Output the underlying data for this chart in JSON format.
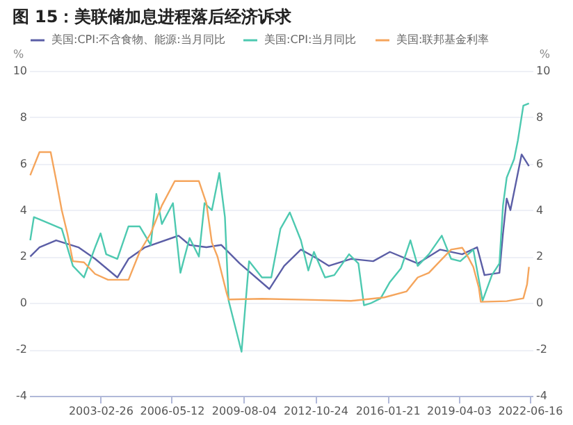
{
  "chart_data": {
    "type": "line",
    "title": "图 15：美联储加息进程落后经济诉求",
    "ylabel": "%",
    "y2label": "%",
    "xlim": [
      "1999-12-15",
      "2022-08-01"
    ],
    "ylim": [
      -4,
      10
    ],
    "yticks": [
      -4,
      -2,
      0,
      2,
      4,
      6,
      8,
      10
    ],
    "y2lim": [
      -4,
      10
    ],
    "y2ticks": [
      -4,
      -2,
      0,
      2,
      4,
      6,
      8,
      10
    ],
    "xticks": [
      "2003-02-26",
      "2006-05-12",
      "2009-08-04",
      "2012-10-24",
      "2016-01-21",
      "2019-04-03",
      "2022-06-16"
    ],
    "grid": "y",
    "legend": "top left",
    "line_style": "solid",
    "marker": "none",
    "series": [
      {
        "name": "美国:CPI:不含食物、能源:当月同比",
        "color": "#5b5ea6",
        "x": [
          "2000-01",
          "2000-06",
          "2001-03",
          "2002-03",
          "2002-12",
          "2003-12",
          "2004-06",
          "2005-03",
          "2006-09",
          "2007-03",
          "2007-12",
          "2008-08",
          "2009-06",
          "2010-10",
          "2011-06",
          "2012-03",
          "2012-12",
          "2013-06",
          "2014-06",
          "2015-06",
          "2016-03",
          "2017-06",
          "2018-06",
          "2019-06",
          "2020-02",
          "2020-06",
          "2021-02",
          "2021-04",
          "2021-06",
          "2021-08",
          "2022-02",
          "2022-06"
        ],
        "values": [
          2.0,
          2.4,
          2.7,
          2.4,
          1.9,
          1.1,
          1.9,
          2.4,
          2.9,
          2.5,
          2.4,
          2.5,
          1.7,
          0.6,
          1.6,
          2.3,
          1.9,
          1.6,
          1.9,
          1.8,
          2.2,
          1.7,
          2.3,
          2.1,
          2.4,
          1.2,
          1.3,
          3.0,
          4.5,
          4.0,
          6.4,
          5.9
        ]
      },
      {
        "name": "美国:CPI:当月同比",
        "color": "#4dc9b0",
        "x": [
          "2000-01",
          "2000-03",
          "2000-06",
          "2000-12",
          "2001-06",
          "2001-12",
          "2002-06",
          "2002-12",
          "2003-03",
          "2003-06",
          "2003-12",
          "2004-06",
          "2004-12",
          "2005-06",
          "2005-09",
          "2005-12",
          "2006-06",
          "2006-10",
          "2007-03",
          "2007-08",
          "2007-11",
          "2008-03",
          "2008-07",
          "2008-10",
          "2008-12",
          "2009-07",
          "2009-11",
          "2010-06",
          "2010-11",
          "2011-04",
          "2011-09",
          "2012-03",
          "2012-07",
          "2012-10",
          "2013-04",
          "2013-09",
          "2014-05",
          "2014-10",
          "2015-01",
          "2015-05",
          "2015-10",
          "2016-03",
          "2016-09",
          "2017-02",
          "2017-06",
          "2017-12",
          "2018-07",
          "2018-12",
          "2019-05",
          "2019-12",
          "2020-05",
          "2020-10",
          "2021-02",
          "2021-04",
          "2021-06",
          "2021-10",
          "2021-12",
          "2022-03",
          "2022-06"
        ],
        "values": [
          2.7,
          3.7,
          3.6,
          3.4,
          3.2,
          1.6,
          1.1,
          2.4,
          3.0,
          2.1,
          1.9,
          3.3,
          3.3,
          2.5,
          4.7,
          3.4,
          4.3,
          1.3,
          2.8,
          2.0,
          4.3,
          4.0,
          5.6,
          3.7,
          0.1,
          -2.1,
          1.8,
          1.1,
          1.1,
          3.2,
          3.9,
          2.7,
          1.4,
          2.2,
          1.1,
          1.2,
          2.1,
          1.7,
          -0.1,
          0.0,
          0.2,
          0.9,
          1.5,
          2.7,
          1.6,
          2.1,
          2.9,
          1.9,
          1.8,
          2.3,
          0.1,
          1.2,
          1.7,
          4.2,
          5.4,
          6.2,
          7.0,
          8.5,
          8.6
        ]
      },
      {
        "name": "美国:联邦基金利率",
        "color": "#f5a55c",
        "x": [
          "2000-01",
          "2000-06",
          "2000-12",
          "2001-03",
          "2001-06",
          "2001-09",
          "2001-12",
          "2002-06",
          "2002-12",
          "2003-07",
          "2004-06",
          "2004-12",
          "2005-06",
          "2005-12",
          "2006-07",
          "2007-08",
          "2007-12",
          "2008-03",
          "2008-06",
          "2008-11",
          "2008-12",
          "2010-06",
          "2012-06",
          "2014-06",
          "2015-12",
          "2016-12",
          "2017-06",
          "2017-12",
          "2018-06",
          "2018-12",
          "2019-06",
          "2019-09",
          "2019-12",
          "2020-03",
          "2020-04",
          "2021-06",
          "2022-03",
          "2022-05",
          "2022-06"
        ],
        "values": [
          5.5,
          6.5,
          6.5,
          5.3,
          4.0,
          3.0,
          1.8,
          1.75,
          1.25,
          1.0,
          1.0,
          2.2,
          3.0,
          4.2,
          5.25,
          5.25,
          4.3,
          2.6,
          2.0,
          0.4,
          0.15,
          0.18,
          0.14,
          0.09,
          0.24,
          0.5,
          1.1,
          1.3,
          1.8,
          2.3,
          2.38,
          2.0,
          1.55,
          0.65,
          0.05,
          0.08,
          0.2,
          0.8,
          1.55
        ]
      }
    ]
  }
}
